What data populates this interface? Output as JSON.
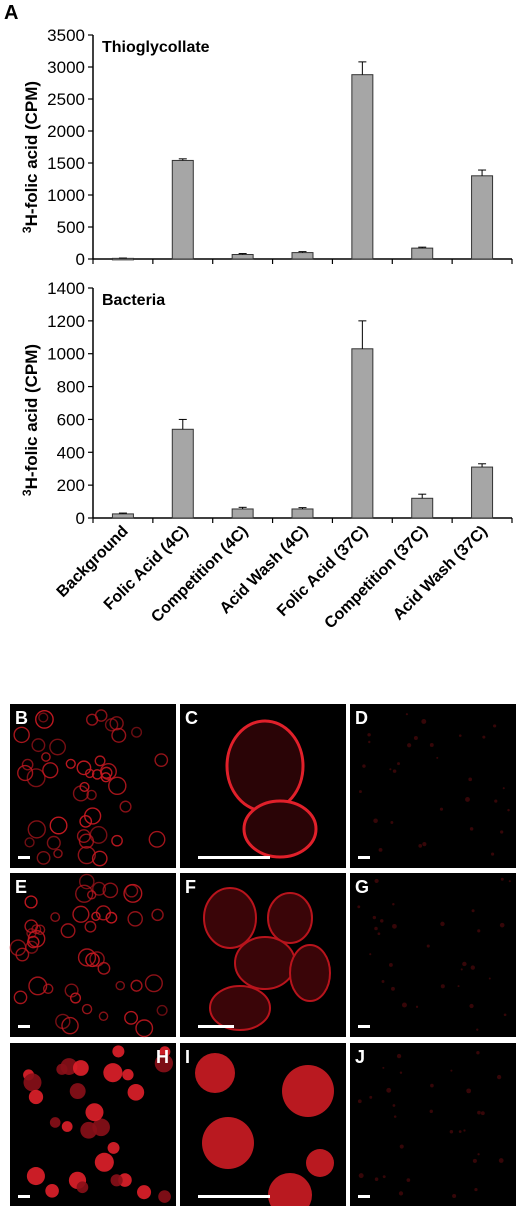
{
  "figure_label": "A",
  "ylabel_prefix": "3",
  "ylabel_main": "H-folic acid (CPM)",
  "bar_color": "#a6a6a6",
  "chart_data": [
    {
      "type": "bar",
      "title": "Thioglycollate",
      "categories": [
        "Background",
        "Folic Acid (4C)",
        "Competition (4C)",
        "Acid Wash (4C)",
        "Folic Acid (37C)",
        "Competition (37C)",
        "Acid Wash (37C)"
      ],
      "values": [
        10,
        1540,
        70,
        100,
        2880,
        170,
        1300
      ],
      "errors": [
        5,
        25,
        15,
        15,
        200,
        15,
        90
      ],
      "ylim": [
        0,
        3500
      ],
      "yticks": [
        "0",
        "500",
        "1000",
        "1500",
        "2000",
        "2500",
        "3000",
        "3500"
      ],
      "ytick_values": [
        0,
        500,
        1000,
        1500,
        2000,
        2500,
        3000,
        3500
      ]
    },
    {
      "type": "bar",
      "title": "Bacteria",
      "categories": [
        "Background",
        "Folic Acid (4C)",
        "Competition (4C)",
        "Acid Wash (4C)",
        "Folic Acid (37C)",
        "Competition (37C)",
        "Acid Wash (37C)"
      ],
      "values": [
        25,
        540,
        55,
        55,
        1030,
        120,
        310
      ],
      "errors": [
        5,
        60,
        10,
        8,
        170,
        25,
        20
      ],
      "ylim": [
        0,
        1400
      ],
      "yticks": [
        "0",
        "200",
        "400",
        "600",
        "800",
        "1000",
        "1200",
        "1400"
      ],
      "ytick_values": [
        0,
        200,
        400,
        600,
        800,
        1000,
        1200,
        1400
      ]
    }
  ],
  "micrographs": [
    {
      "letter": "B",
      "scale_bar": true,
      "content": "small-cells"
    },
    {
      "letter": "C",
      "scale_bar": true,
      "content": "two-cells-zoom"
    },
    {
      "letter": "D",
      "scale_bar": true,
      "content": "dim"
    },
    {
      "letter": "E",
      "scale_bar": true,
      "content": "small-cells"
    },
    {
      "letter": "F",
      "scale_bar": true,
      "content": "cluster-zoom"
    },
    {
      "letter": "G",
      "scale_bar": true,
      "content": "dim"
    },
    {
      "letter": "H",
      "scale_bar": true,
      "content": "bright-cells"
    },
    {
      "letter": "I",
      "scale_bar": true,
      "content": "bright-zoom"
    },
    {
      "letter": "J",
      "scale_bar": true,
      "content": "dim"
    }
  ]
}
